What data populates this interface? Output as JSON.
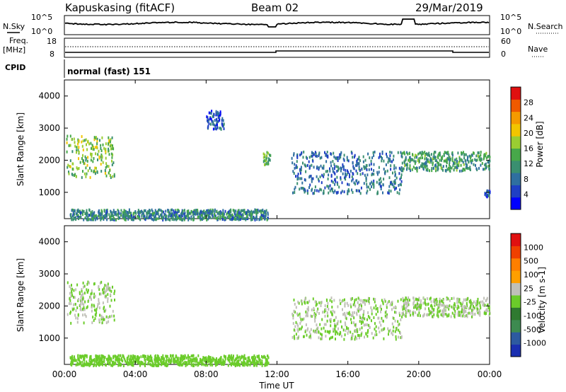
{
  "header": {
    "station": "Kapuskasing (fitACF)",
    "beam": "Beam 02",
    "date": "29/Mar/2019"
  },
  "summary": {
    "nsky_label": "N.Sky",
    "nsky_ticks": [
      "10^5",
      "10^0"
    ],
    "nsearch_label": "N.Search",
    "nsearch_ticks": [
      "10^5",
      "10^0"
    ],
    "freq_label_1": "Freq.",
    "freq_label_2": "[MHz]",
    "freq_ticks": [
      "18",
      "8"
    ],
    "nave_label": "Nave",
    "nave_ticks": [
      "60",
      "0"
    ],
    "cpid_label": "CPID",
    "cpid_value": "normal (fast) 151"
  },
  "chart_data": [
    {
      "type": "heatmap",
      "name": "power",
      "ylabel": "Slant Range [km]",
      "ylim": [
        180,
        4500
      ],
      "yticks": [
        1000,
        2000,
        3000,
        4000
      ],
      "xlim": [
        0,
        24
      ],
      "colorbar": {
        "label": "Power [dB]",
        "range": [
          0,
          32
        ],
        "ticks": [
          "4",
          "8",
          "12",
          "16",
          "20",
          "24",
          "28"
        ],
        "colors": [
          "#0000ff",
          "#1f3fc4",
          "#2f6fa0",
          "#3a8f70",
          "#47a84a",
          "#9acd32",
          "#f2c500",
          "#f59a00",
          "#ef5a00",
          "#e01010"
        ]
      },
      "regions": [
        {
          "x": [
            0.1,
            2.8
          ],
          "range": [
            1500,
            2800
          ],
          "value": 16
        },
        {
          "x": [
            0.3,
            11.5
          ],
          "range": [
            180,
            500
          ],
          "value": 10
        },
        {
          "x": [
            11.2,
            11.6
          ],
          "range": [
            1900,
            2300
          ],
          "value": 14
        },
        {
          "x": [
            8.0,
            9.0
          ],
          "range": [
            3000,
            3600
          ],
          "value": 6
        },
        {
          "x": [
            12.8,
            19.0
          ],
          "range": [
            1000,
            2300
          ],
          "value": 8
        },
        {
          "x": [
            19.0,
            24.0
          ],
          "range": [
            1700,
            2300
          ],
          "value": 12
        },
        {
          "x": [
            23.7,
            24.0
          ],
          "range": [
            900,
            1100
          ],
          "value": 6
        }
      ]
    },
    {
      "type": "heatmap",
      "name": "velocity",
      "ylabel": "Slant Range [km]",
      "ylim": [
        180,
        4500
      ],
      "yticks": [
        1000,
        2000,
        3000,
        4000
      ],
      "xlim": [
        0,
        24
      ],
      "colorbar": {
        "label": "Velocity [m s-1]",
        "range": [
          -1250,
          1250
        ],
        "ticks": [
          "1000",
          "500",
          "100",
          "25",
          "-25",
          "-100",
          "-500",
          "-1000"
        ],
        "colors": [
          "#1a2fb0",
          "#2d5aa0",
          "#3d8a50",
          "#2f7a30",
          "#6bcc2a",
          "#c0c0b8",
          "#ff9f00",
          "#ff7f00",
          "#f04000",
          "#e01010"
        ]
      },
      "regions": [
        {
          "x": [
            0.1,
            2.8
          ],
          "range": [
            1500,
            2800
          ],
          "value": 0
        },
        {
          "x": [
            0.3,
            11.5
          ],
          "range": [
            180,
            500
          ],
          "value": -80
        },
        {
          "x": [
            12.8,
            19.0
          ],
          "range": [
            1000,
            2300
          ],
          "value": 0
        },
        {
          "x": [
            19.0,
            24.0
          ],
          "range": [
            1700,
            2300
          ],
          "value": 0
        }
      ]
    }
  ],
  "xaxis": {
    "ticks": [
      "00:00",
      "04:00",
      "08:00",
      "12:00",
      "16:00",
      "20:00",
      "00:00"
    ],
    "label": "Time UT"
  }
}
